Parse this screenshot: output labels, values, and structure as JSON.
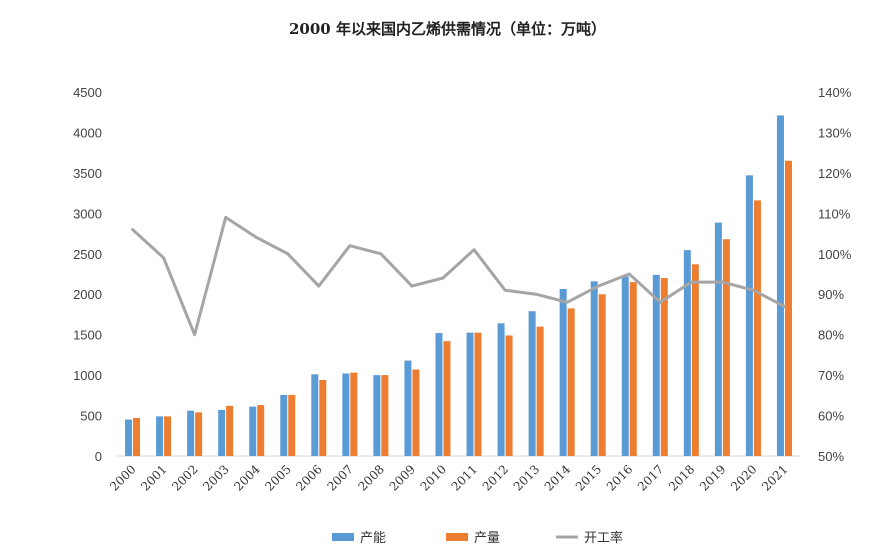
{
  "chart_data": {
    "type": "bar",
    "title": "2000 年以来国内乙烯供需情况（单位：万吨）",
    "categories": [
      "2000",
      "2001",
      "2002",
      "2003",
      "2004",
      "2005",
      "2006",
      "2007",
      "2008",
      "2009",
      "2010",
      "2011",
      "2012",
      "2013",
      "2014",
      "2015",
      "2016",
      "2017",
      "2018",
      "2019",
      "2020",
      "2021"
    ],
    "series": [
      {
        "name": "产能",
        "kind": "bar",
        "axis": "left",
        "color": "#5b9bd5",
        "values": [
          450,
          490,
          560,
          570,
          610,
          755,
          1010,
          1020,
          1000,
          1180,
          1520,
          1525,
          1640,
          1790,
          2065,
          2160,
          2220,
          2240,
          2545,
          2885,
          3470,
          4210
        ]
      },
      {
        "name": "产量",
        "kind": "bar",
        "axis": "left",
        "color": "#ed7d31",
        "values": [
          470,
          490,
          540,
          620,
          630,
          755,
          940,
          1030,
          1000,
          1070,
          1420,
          1525,
          1490,
          1600,
          1825,
          2000,
          2150,
          2200,
          2370,
          2680,
          3160,
          3650
        ]
      },
      {
        "name": "开工率",
        "kind": "line",
        "axis": "right",
        "color": "#a5a5a5",
        "values": [
          106,
          99,
          80,
          109,
          104,
          100,
          92,
          102,
          100,
          92,
          94,
          101,
          91,
          90,
          88,
          92,
          95,
          88,
          93,
          93,
          91,
          87
        ]
      }
    ],
    "y_left": {
      "min": 0,
      "max": 4500,
      "ticks": [
        "0",
        "500",
        "1000",
        "1500",
        "2000",
        "2500",
        "3000",
        "3500",
        "4000",
        "4500"
      ]
    },
    "y_right": {
      "min": 50,
      "max": 140,
      "ticks": [
        "50%",
        "60%",
        "70%",
        "80%",
        "90%",
        "100%",
        "110%",
        "120%",
        "130%",
        "140%"
      ]
    },
    "grid": false,
    "legend": {
      "position": "bottom"
    }
  }
}
